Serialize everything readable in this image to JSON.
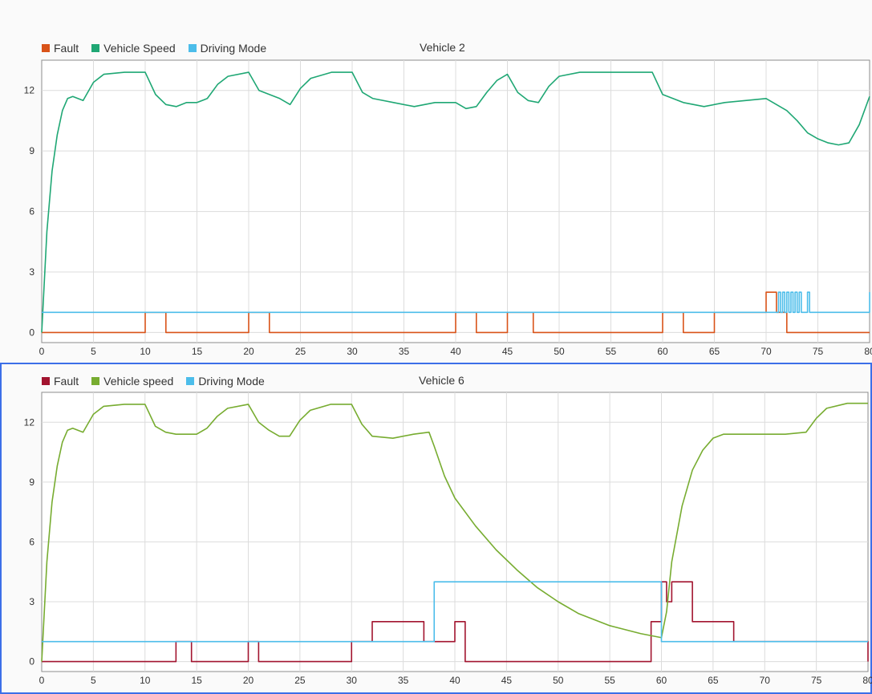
{
  "chart_data": [
    {
      "type": "line",
      "title": "Vehicle 2",
      "xlim": [
        0,
        80
      ],
      "ylim": [
        -0.5,
        13.5
      ],
      "xticks": [
        0,
        5,
        10,
        15,
        20,
        25,
        30,
        35,
        40,
        45,
        50,
        55,
        60,
        65,
        70,
        75,
        80
      ],
      "yticks": [
        0,
        3,
        6,
        9,
        12
      ],
      "grid": true,
      "legend": "top-left",
      "series": [
        {
          "name": "Fault",
          "color": "#d95319",
          "step": true,
          "x": [
            0,
            10,
            12,
            20,
            22,
            40,
            42,
            45,
            47.5,
            60,
            62,
            65,
            70,
            71,
            72,
            80
          ],
          "y": [
            0,
            1,
            0,
            1,
            0,
            1,
            0,
            1,
            0,
            1,
            0,
            1,
            2,
            1,
            0,
            0
          ]
        },
        {
          "name": "Vehicle Speed",
          "color": "#1fa774",
          "step": false,
          "x": [
            0,
            0.5,
            1,
            1.5,
            2,
            2.5,
            3,
            4,
            5,
            6,
            8,
            10,
            11,
            12,
            13,
            14,
            15,
            16,
            17,
            18,
            20,
            21,
            22,
            23,
            24,
            25,
            26,
            28,
            30,
            31,
            32,
            34,
            36,
            38,
            40,
            41,
            42,
            43,
            44,
            45,
            46,
            47,
            48,
            49,
            50,
            52,
            55,
            59,
            60,
            61,
            62,
            64,
            66,
            68,
            70,
            71,
            72,
            73,
            74,
            75,
            76,
            77,
            78,
            79,
            80
          ],
          "y": [
            0,
            5,
            8,
            9.8,
            11,
            11.6,
            11.7,
            11.5,
            12.4,
            12.8,
            12.9,
            12.9,
            11.8,
            11.3,
            11.2,
            11.4,
            11.4,
            11.6,
            12.3,
            12.7,
            12.9,
            12,
            11.8,
            11.6,
            11.3,
            12.1,
            12.6,
            12.9,
            12.9,
            11.9,
            11.6,
            11.4,
            11.2,
            11.4,
            11.4,
            11.1,
            11.2,
            11.9,
            12.5,
            12.8,
            11.9,
            11.5,
            11.4,
            12.2,
            12.7,
            12.9,
            12.9,
            12.9,
            11.8,
            11.6,
            11.4,
            11.2,
            11.4,
            11.5,
            11.6,
            11.3,
            11,
            10.5,
            9.9,
            9.6,
            9.4,
            9.3,
            9.4,
            10.3,
            11.7
          ]
        },
        {
          "name": "Driving Mode",
          "color": "#4cbdea",
          "step": true,
          "x": [
            0,
            71.2,
            71.4,
            71.6,
            71.8,
            72,
            72.2,
            72.4,
            72.6,
            72.8,
            73,
            73.2,
            73.4,
            74,
            74.2,
            80
          ],
          "y": [
            1,
            2,
            1,
            2,
            1,
            2,
            1,
            2,
            1,
            2,
            1,
            2,
            1,
            2,
            1,
            2
          ],
          "final": 2
        }
      ]
    },
    {
      "type": "line",
      "title": "Vehicle 6",
      "xlim": [
        0,
        80
      ],
      "ylim": [
        -0.5,
        13.5
      ],
      "xticks": [
        0,
        5,
        10,
        15,
        20,
        25,
        30,
        35,
        40,
        45,
        50,
        55,
        60,
        65,
        70,
        75,
        80
      ],
      "yticks": [
        0,
        3,
        6,
        9,
        12
      ],
      "grid": true,
      "legend": "top-left",
      "series": [
        {
          "name": "Fault",
          "color": "#a2142f",
          "step": true,
          "x": [
            0,
            13,
            14.5,
            20,
            21,
            30,
            32,
            37,
            40,
            41,
            59,
            60,
            60.5,
            61,
            63,
            67,
            80
          ],
          "y": [
            0,
            1,
            0,
            1,
            0,
            1,
            2,
            1,
            2,
            0,
            2,
            4,
            3,
            4,
            2,
            1,
            0
          ]
        },
        {
          "name": "Vehicle speed",
          "color": "#77ac30",
          "step": false,
          "x": [
            0,
            0.5,
            1,
            1.5,
            2,
            2.5,
            3,
            4,
            5,
            6,
            8,
            10,
            11,
            12,
            13,
            14,
            15,
            16,
            17,
            18,
            20,
            21,
            22,
            23,
            24,
            25,
            26,
            28,
            30,
            31,
            32,
            34,
            36,
            37.5,
            38,
            39,
            40,
            42,
            44,
            46,
            48,
            50,
            52,
            55,
            58,
            60,
            60.5,
            61,
            62,
            63,
            64,
            65,
            66,
            68,
            70,
            72,
            74,
            75,
            76,
            78,
            80
          ],
          "y": [
            0,
            5,
            8,
            9.8,
            11,
            11.6,
            11.7,
            11.5,
            12.4,
            12.8,
            12.9,
            12.9,
            11.8,
            11.5,
            11.4,
            11.4,
            11.4,
            11.7,
            12.3,
            12.7,
            12.9,
            12,
            11.6,
            11.3,
            11.3,
            12.1,
            12.6,
            12.9,
            12.9,
            11.9,
            11.3,
            11.2,
            11.4,
            11.5,
            10.8,
            9.3,
            8.2,
            6.8,
            5.6,
            4.6,
            3.7,
            3,
            2.4,
            1.8,
            1.4,
            1.2,
            2.5,
            5,
            7.8,
            9.6,
            10.6,
            11.2,
            11.4,
            11.4,
            11.4,
            11.4,
            11.5,
            12.2,
            12.7,
            12.95,
            12.95
          ]
        },
        {
          "name": "Driving Mode",
          "color": "#4cbdea",
          "step": true,
          "x": [
            0,
            30,
            38,
            60,
            80
          ],
          "y": [
            1,
            1,
            4,
            1,
            1
          ],
          "final": 1
        }
      ]
    }
  ]
}
